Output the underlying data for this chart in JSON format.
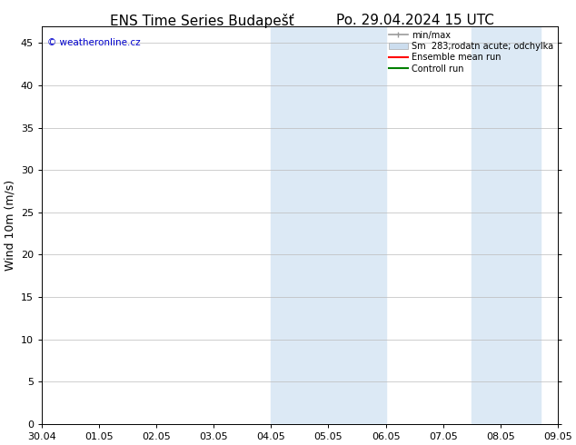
{
  "title": "ENS Time Series Budapešť",
  "subtitle": "Po. 29.04.2024 15 UTC",
  "ylabel": "Wind 10m (m/s)",
  "ylabel_fontsize": 9,
  "ylim": [
    0,
    47
  ],
  "yticks": [
    0,
    5,
    10,
    15,
    20,
    25,
    30,
    35,
    40,
    45
  ],
  "xtick_labels": [
    "30.04",
    "01.05",
    "02.05",
    "03.05",
    "04.05",
    "05.05",
    "06.05",
    "07.05",
    "08.05",
    "09.05"
  ],
  "xlim_days": [
    0,
    9
  ],
  "shaded_regions": [
    {
      "x_start": 4.0,
      "x_end": 5.0,
      "color": "#dce9f5"
    },
    {
      "x_start": 5.0,
      "x_end": 6.0,
      "color": "#dce9f5"
    },
    {
      "x_start": 7.5,
      "x_end": 8.0,
      "color": "#dce9f5"
    },
    {
      "x_start": 8.0,
      "x_end": 8.7,
      "color": "#dce9f5"
    }
  ],
  "bg_color": "#ffffff",
  "plot_bg_color": "#ffffff",
  "grid_color": "#bbbbbb",
  "title_fontsize": 11,
  "tick_fontsize": 8,
  "watermark_text": "© weatheronline.cz",
  "watermark_color": "#0000cc",
  "legend_labels": [
    "min/max",
    "Sm  283;rodatn acute; odchylka",
    "Ensemble mean run",
    "Controll run"
  ],
  "legend_colors": [
    "#999999",
    "#ccddee",
    "#ff0000",
    "#008000"
  ]
}
